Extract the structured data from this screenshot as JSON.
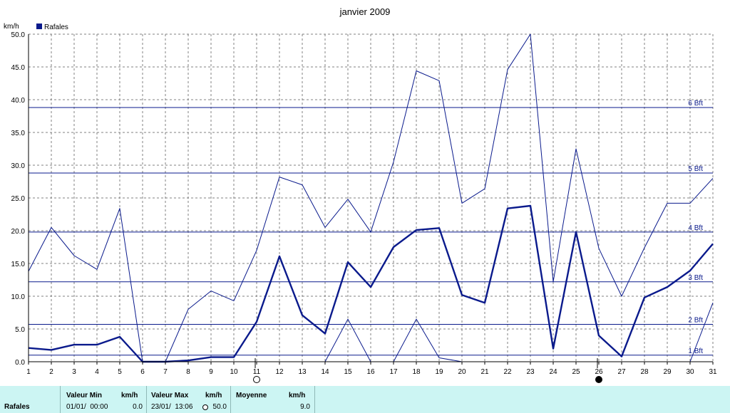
{
  "chart_data": {
    "type": "line",
    "title": "janvier 2009",
    "ylabel": "km/h",
    "legend": "Rafales",
    "legend_position": "top-left",
    "grid": true,
    "ylim": [
      0,
      50
    ],
    "xlim": [
      1,
      31
    ],
    "y_ticks": [
      "0.0",
      "5.0",
      "10.0",
      "15.0",
      "20.0",
      "25.0",
      "30.0",
      "35.0",
      "40.0",
      "45.0",
      "50.0"
    ],
    "x": [
      1,
      2,
      3,
      4,
      5,
      6,
      7,
      8,
      9,
      10,
      11,
      12,
      13,
      14,
      15,
      16,
      17,
      18,
      19,
      20,
      21,
      22,
      23,
      24,
      25,
      26,
      27,
      28,
      29,
      30,
      31
    ],
    "series": [
      {
        "name": "Rafales",
        "role": "max",
        "color": "#0a1a8c",
        "width": 1,
        "values": [
          13.8,
          20.5,
          16.2,
          14.1,
          23.4,
          0.0,
          0.0,
          8.0,
          10.8,
          9.3,
          17.0,
          28.2,
          27.0,
          20.5,
          24.8,
          19.8,
          30.5,
          44.4,
          42.9,
          24.2,
          26.4,
          44.6,
          50.0,
          12.2,
          32.5,
          17.3,
          10.0,
          17.4,
          24.2,
          24.2,
          28.0
        ]
      },
      {
        "name": "",
        "role": "mean",
        "color": "#0a1a8c",
        "width": 2.4,
        "values": [
          2.1,
          1.8,
          2.6,
          2.6,
          3.8,
          0.0,
          0.0,
          0.2,
          0.7,
          0.7,
          6.1,
          16.1,
          7.1,
          4.3,
          15.2,
          11.4,
          17.5,
          20.1,
          20.4,
          10.2,
          9.0,
          23.4,
          23.8,
          2.0,
          19.8,
          4.0,
          0.8,
          9.8,
          11.4,
          13.9,
          18.0
        ]
      },
      {
        "name": "",
        "role": "min",
        "color": "#0a1a8c",
        "width": 1,
        "values": [
          null,
          null,
          null,
          null,
          null,
          null,
          null,
          null,
          null,
          null,
          null,
          null,
          null,
          0.0,
          6.5,
          0.0,
          0.0,
          6.5,
          0.6,
          0.0,
          null,
          null,
          null,
          null,
          null,
          null,
          null,
          null,
          null,
          0.0,
          9.0
        ]
      }
    ],
    "beaufort_lines": [
      {
        "label": "1 Bft",
        "value": 1.0
      },
      {
        "label": "2 Bft",
        "value": 5.7
      },
      {
        "label": "3 Bft",
        "value": 12.2
      },
      {
        "label": "4 Bft",
        "value": 19.8
      },
      {
        "label": "5 Bft",
        "value": 28.8
      },
      {
        "label": "6 Bft",
        "value": 38.8
      }
    ],
    "moon_phases": [
      {
        "day": 11,
        "phase": "full"
      },
      {
        "day": 26,
        "phase": "new"
      }
    ]
  },
  "table": {
    "row_label": "Rafales",
    "min_header": "Valeur Min",
    "min_unit": "km/h",
    "min_time": "01/01/  00:00",
    "min_value": "0.0",
    "max_header": "Valeur Max",
    "max_unit": "km/h",
    "max_time": "23/01/  13:06",
    "max_value": "50.0",
    "mean_header": "Moyenne",
    "mean_unit": "km/h",
    "mean_value": "9.0"
  }
}
